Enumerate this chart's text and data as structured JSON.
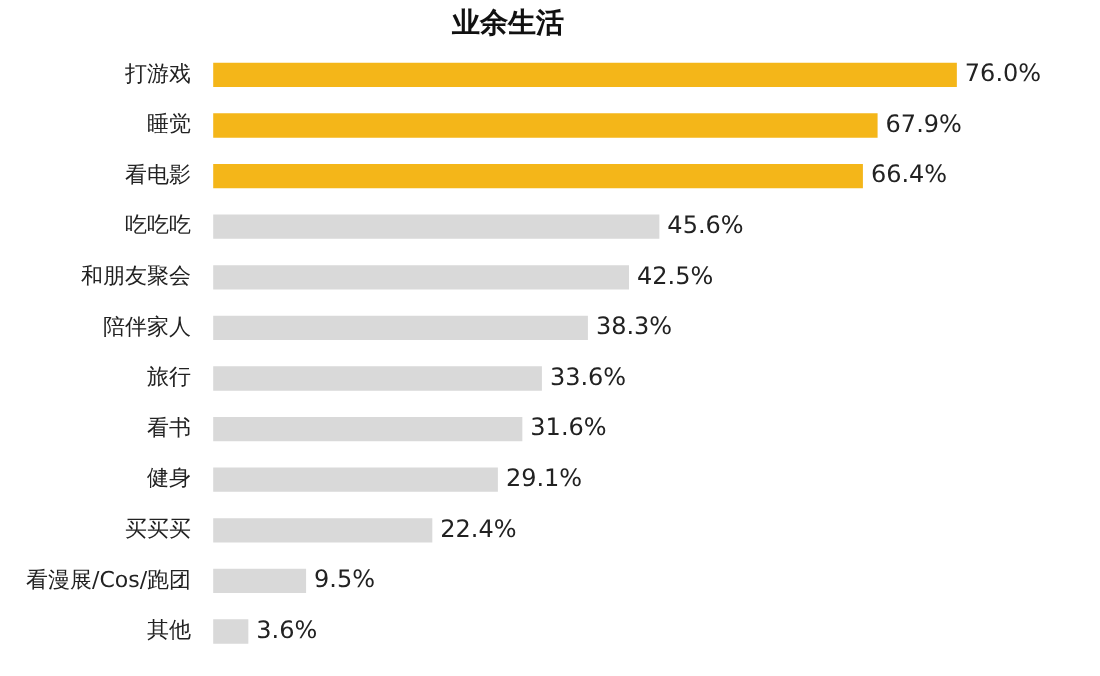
{
  "chart_data": {
    "type": "bar",
    "orientation": "horizontal",
    "title": "业余生活",
    "categories": [
      "打游戏",
      "睡觉",
      "看电影",
      "吃吃吃",
      "和朋友聚会",
      "陪伴家人",
      "旅行",
      "看书",
      "健身",
      "买买买",
      "看漫展/Cos/跑团",
      "其他"
    ],
    "values": [
      76.0,
      67.9,
      66.4,
      45.6,
      42.5,
      38.3,
      33.6,
      31.6,
      29.1,
      22.4,
      9.5,
      3.6
    ],
    "colors": [
      "#f4b619",
      "#f4b619",
      "#f4b619",
      "#d9d9d9",
      "#d9d9d9",
      "#d9d9d9",
      "#d9d9d9",
      "#d9d9d9",
      "#d9d9d9",
      "#d9d9d9",
      "#d9d9d9",
      "#d9d9d9"
    ],
    "value_labels": [
      "76.0%",
      "67.9%",
      "66.4%",
      "45.6%",
      "42.5%",
      "38.3%",
      "33.6%",
      "31.6%",
      "29.1%",
      "22.4%",
      "9.5%",
      "3.6%"
    ],
    "legend": false
  }
}
